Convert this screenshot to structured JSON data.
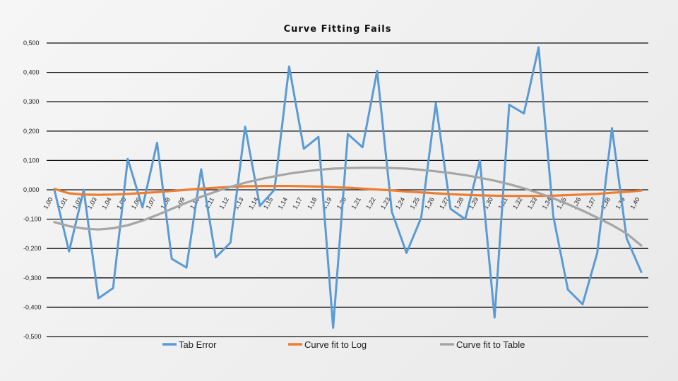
{
  "chart_data": {
    "type": "line",
    "title": "Curve Fitting Fails",
    "xlabel": "",
    "ylabel": "",
    "ylim": [
      -0.5,
      0.5
    ],
    "yticks": [
      0.5,
      0.4,
      0.3,
      0.2,
      0.1,
      0.0,
      -0.1,
      -0.2,
      -0.3,
      -0.4,
      -0.5
    ],
    "ytick_labels": [
      "0,500",
      "0,400",
      "0,300",
      "0,200",
      "0,100",
      "0,000",
      "-0,100",
      "-0,200",
      "-0,300",
      "-0,400",
      "-0,500"
    ],
    "grid": true,
    "legend_position": "bottom",
    "categories": [
      "1,00",
      "1,01",
      "1,02",
      "1,03",
      "1,04",
      "1,05",
      "1,06",
      "1,07",
      "1,08",
      "1,09",
      "1,10",
      "1,11",
      "1,12",
      "1,13",
      "1,14",
      "1,15",
      "1,14",
      "1,17",
      "1,18",
      "1,19",
      "1,20",
      "1,21",
      "1,22",
      "1,23",
      "1,24",
      "1,25",
      "1,26",
      "1,27",
      "1,28",
      "1,29",
      "1,30",
      "1,31",
      "1,32",
      "1,33",
      "1,34",
      "1,35",
      "1,36",
      "1,37",
      "1,38",
      "1,39",
      "1,40"
    ],
    "series": [
      {
        "name": "Tab Error",
        "color": "#5b9bd5",
        "values": [
          0.0,
          -0.21,
          0.0,
          -0.37,
          -0.335,
          0.105,
          -0.06,
          0.16,
          -0.235,
          -0.265,
          0.07,
          -0.23,
          -0.18,
          0.215,
          -0.055,
          0.0,
          0.42,
          0.14,
          0.18,
          -0.47,
          0.19,
          0.145,
          0.405,
          -0.075,
          -0.215,
          -0.095,
          0.295,
          -0.065,
          -0.1,
          0.1,
          -0.435,
          0.29,
          0.26,
          0.485,
          -0.09,
          -0.34,
          -0.39,
          -0.215,
          0.21,
          -0.165,
          -0.28
        ]
      },
      {
        "name": "Curve fit to Log",
        "color": "#ed7d31",
        "values": [
          0.003,
          -0.012,
          -0.016,
          -0.017,
          -0.016,
          -0.014,
          -0.011,
          -0.008,
          -0.004,
          0.0,
          0.004,
          0.007,
          0.01,
          0.012,
          0.013,
          0.013,
          0.013,
          0.012,
          0.011,
          0.009,
          0.007,
          0.004,
          0.001,
          -0.002,
          -0.006,
          -0.009,
          -0.012,
          -0.015,
          -0.017,
          -0.019,
          -0.02,
          -0.021,
          -0.021,
          -0.021,
          -0.02,
          -0.018,
          -0.016,
          -0.014,
          -0.01,
          -0.007,
          -0.003
        ]
      },
      {
        "name": "Curve fit to Table",
        "color": "#a5a5a5",
        "values": [
          -0.11,
          -0.124,
          -0.132,
          -0.135,
          -0.131,
          -0.121,
          -0.105,
          -0.086,
          -0.065,
          -0.044,
          -0.024,
          -0.006,
          0.01,
          0.024,
          0.036,
          0.046,
          0.055,
          0.062,
          0.068,
          0.072,
          0.074,
          0.075,
          0.075,
          0.074,
          0.072,
          0.068,
          0.063,
          0.057,
          0.05,
          0.041,
          0.031,
          0.019,
          0.005,
          -0.011,
          -0.029,
          -0.049,
          -0.071,
          -0.095,
          -0.12,
          -0.149,
          -0.19
        ]
      }
    ]
  }
}
